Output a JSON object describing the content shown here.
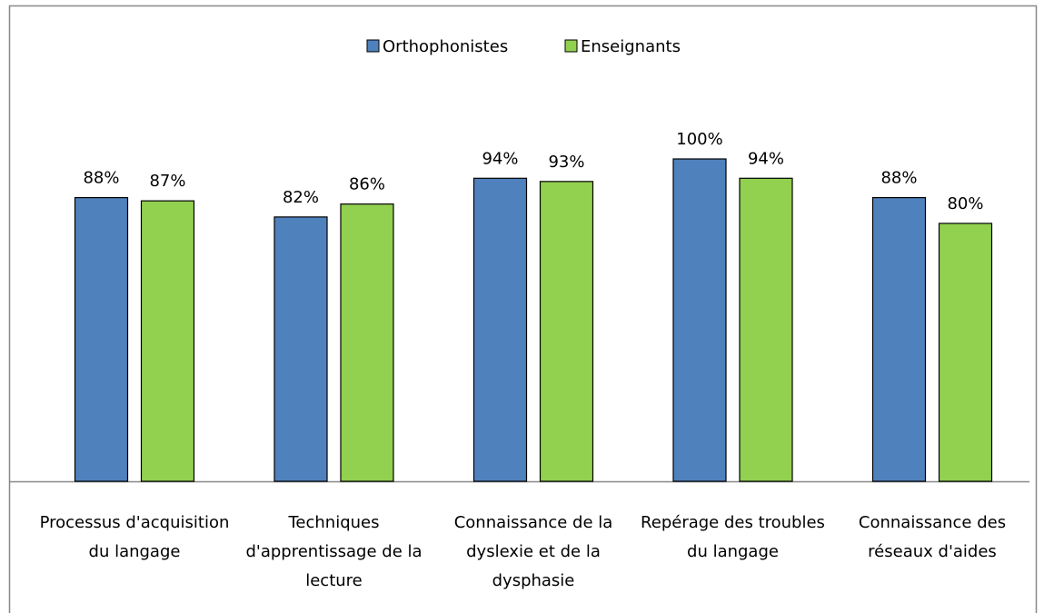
{
  "chart_data": {
    "type": "bar",
    "categories": [
      "Processus d'acquisition du langage",
      "Techniques d'apprentissage de la lecture",
      "Connaissance de la dyslexie et de la dysphasie",
      "Repérage des troubles du langage",
      "Connaissance des réseaux d'aides"
    ],
    "series": [
      {
        "name": "Orthophonistes",
        "color": "#4f81bd",
        "values": [
          88,
          82,
          94,
          100,
          88
        ],
        "value_labels": [
          "88%",
          "82%",
          "94%",
          "100%",
          "88%"
        ]
      },
      {
        "name": "Enseignants",
        "color": "#92d050",
        "values": [
          87,
          86,
          93,
          94,
          80
        ],
        "value_labels": [
          "87%",
          "86%",
          "93%",
          "94%",
          "80%"
        ]
      }
    ],
    "legend": "top"
  }
}
